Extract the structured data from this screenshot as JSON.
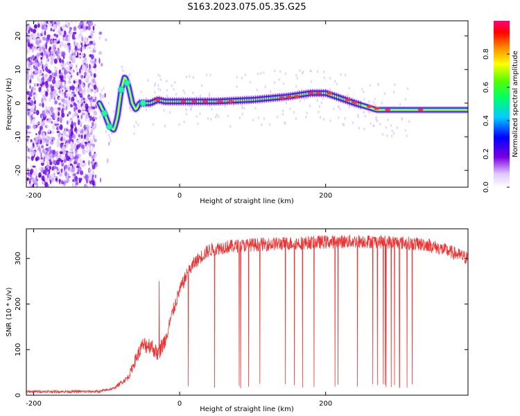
{
  "title": "S163.2023.075.05.35.G25",
  "chart_data": [
    {
      "type": "heatmap",
      "xlabel": "Height of straight line (km)",
      "ylabel": "Frequency (Hz)",
      "xlim": [
        -210,
        395
      ],
      "ylim": [
        -25,
        24.5
      ],
      "x_ticks": [
        -200,
        0,
        200
      ],
      "y_ticks": [
        -20,
        -10,
        0,
        10,
        20
      ],
      "colorbar": {
        "label": "Normalized spectral amplitude",
        "range": [
          0,
          1
        ],
        "ticks": [
          0.0,
          0.2,
          0.4,
          0.6,
          0.8
        ],
        "tick_labels": [
          "0.0",
          "0.2",
          "0.4",
          "0.6",
          "0.8"
        ]
      },
      "ridge": {
        "x": [
          -110,
          -103,
          -96,
          -90,
          -85,
          -80,
          -75,
          -70,
          -65,
          -60,
          -55,
          -48,
          -40,
          -30,
          -20,
          0,
          50,
          100,
          150,
          180,
          200,
          220,
          240,
          255,
          270,
          300,
          340,
          395
        ],
        "y": [
          0,
          -3,
          -7,
          -8,
          -4,
          4,
          8,
          5,
          0,
          -2,
          0,
          0,
          0,
          1,
          0.5,
          0.5,
          0.5,
          1,
          2,
          3,
          3,
          1.5,
          0,
          -1,
          -2,
          -2,
          -2,
          -2
        ]
      },
      "noise_region_x": [
        -210,
        -115
      ]
    },
    {
      "type": "line",
      "xlabel": "Height of straight line (km)",
      "ylabel": "SNR (10 * v/v)",
      "xlim": [
        -210,
        395
      ],
      "ylim": [
        0,
        365
      ],
      "x_ticks": [
        -200,
        0,
        200
      ],
      "y_ticks": [
        0,
        100,
        200,
        300
      ],
      "series": [
        {
          "color": "#ee3333",
          "envelope_x": [
            -210,
            -150,
            -110,
            -90,
            -70,
            -60,
            -50,
            -40,
            -30,
            -20,
            -10,
            0,
            10,
            20,
            30,
            40,
            60,
            100,
            150,
            200,
            250,
            300,
            340,
            370,
            395
          ],
          "envelope_y": [
            8,
            8,
            8,
            15,
            40,
            80,
            110,
            110,
            90,
            120,
            180,
            230,
            265,
            290,
            305,
            318,
            325,
            330,
            333,
            336,
            338,
            335,
            330,
            315,
            300
          ]
        }
      ]
    }
  ]
}
